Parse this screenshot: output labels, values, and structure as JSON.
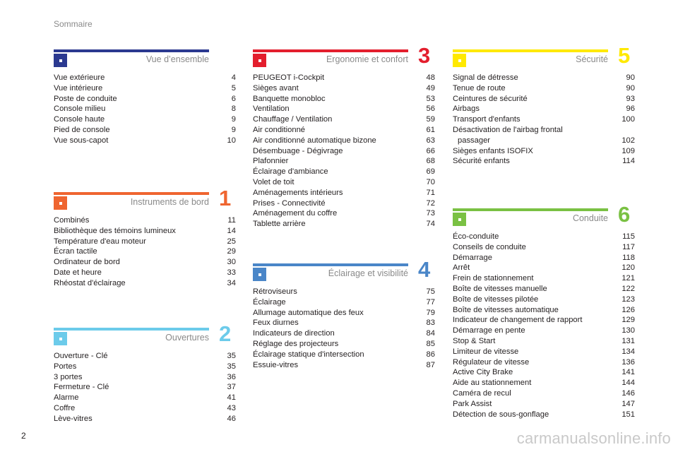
{
  "header": {
    "title": "Sommaire"
  },
  "footer": {
    "page_number": "2",
    "watermark": "carmanualsonline.info"
  },
  "sections": [
    {
      "title": "Vue d’ensemble",
      "number": "",
      "color": "#2b3990",
      "items": [
        {
          "label": "Vue extérieure",
          "page": "4"
        },
        {
          "label": "Vue intérieure",
          "page": "5"
        },
        {
          "label": "Poste de conduite",
          "page": "6"
        },
        {
          "label": "Console milieu",
          "page": "8"
        },
        {
          "label": "Console haute",
          "page": "9"
        },
        {
          "label": "Pied de console",
          "page": "9"
        },
        {
          "label": "Vue sous-capot",
          "page": "10"
        }
      ]
    },
    {
      "title": "Instruments de bord",
      "number": "1",
      "color": "#ef6530",
      "items": [
        {
          "label": "Combinés",
          "page": "11"
        },
        {
          "label": "Bibliothèque des témoins lumineux",
          "page": "14"
        },
        {
          "label": "Température d'eau moteur",
          "page": "25"
        },
        {
          "label": "Écran tactile",
          "page": "29"
        },
        {
          "label": "Ordinateur de bord",
          "page": "30"
        },
        {
          "label": "Date et heure",
          "page": "33"
        },
        {
          "label": "Rhéostat d'éclairage",
          "page": "34"
        }
      ]
    },
    {
      "title": "Ouvertures",
      "number": "2",
      "color": "#6ccbea",
      "items": [
        {
          "label": "Ouverture - Clé",
          "page": "35"
        },
        {
          "label": "Portes",
          "page": "35"
        },
        {
          "label": "3 portes",
          "page": "36"
        },
        {
          "label": "Fermeture - Clé",
          "page": "37"
        },
        {
          "label": "Alarme",
          "page": "41"
        },
        {
          "label": "Coffre",
          "page": "43"
        },
        {
          "label": "Lève-vitres",
          "page": "46"
        }
      ]
    },
    {
      "title": "Ergonomie et confort",
      "number": "3",
      "color": "#e31e2d",
      "items": [
        {
          "label": "PEUGEOT i-Cockpit",
          "page": "48"
        },
        {
          "label": "Sièges avant",
          "page": "49"
        },
        {
          "label": "Banquette monobloc",
          "page": "53"
        },
        {
          "label": "Ventilation",
          "page": "56"
        },
        {
          "label": "Chauffage / Ventilation",
          "page": "59"
        },
        {
          "label": "Air conditionné",
          "page": "61"
        },
        {
          "label": "Air conditionné automatique bizone",
          "page": "63"
        },
        {
          "label": "Désembuage - Dégivrage",
          "page": "66"
        },
        {
          "label": "Plafonnier",
          "page": "68"
        },
        {
          "label": "Éclairage d'ambiance",
          "page": "69"
        },
        {
          "label": "Volet de toit",
          "page": "70"
        },
        {
          "label": "Aménagements intérieurs",
          "page": "71"
        },
        {
          "label": "Prises - Connectivité",
          "page": "72"
        },
        {
          "label": "Aménagement du coffre",
          "page": "73"
        },
        {
          "label": "Tablette arrière",
          "page": "74"
        }
      ]
    },
    {
      "title": "Éclairage et visibilité",
      "number": "4",
      "color": "#4a86c8",
      "items": [
        {
          "label": "Rétroviseurs",
          "page": "75"
        },
        {
          "label": "Éclairage",
          "page": "77"
        },
        {
          "label": "Allumage automatique des feux",
          "page": "79"
        },
        {
          "label": "Feux diurnes",
          "page": "83"
        },
        {
          "label": "Indicateurs de direction",
          "page": "84"
        },
        {
          "label": "Réglage des projecteurs",
          "page": "85"
        },
        {
          "label": "Éclairage statique d'intersection",
          "page": "86"
        },
        {
          "label": "Essuie-vitres",
          "page": "87"
        }
      ]
    },
    {
      "title": "Sécurité",
      "number": "5",
      "color": "#ffe900",
      "items": [
        {
          "label": "Signal de détresse",
          "page": "90"
        },
        {
          "label": "Tenue de route",
          "page": "90"
        },
        {
          "label": "Ceintures de sécurité",
          "page": "93"
        },
        {
          "label": "Airbags",
          "page": "96"
        },
        {
          "label": "Transport d'enfants",
          "page": "100"
        },
        {
          "label": "Désactivation de l'airbag frontal passager",
          "page": "102"
        },
        {
          "label": "Sièges enfants ISOFIX",
          "page": "109"
        },
        {
          "label": "Sécurité enfants",
          "page": "114"
        }
      ]
    },
    {
      "title": "Conduite",
      "number": "6",
      "color": "#7ac143",
      "items": [
        {
          "label": "Éco-conduite",
          "page": "115"
        },
        {
          "label": "Conseils de conduite",
          "page": "117"
        },
        {
          "label": "Démarrage",
          "page": "118"
        },
        {
          "label": "Arrêt",
          "page": "120"
        },
        {
          "label": "Frein de stationnement",
          "page": "121"
        },
        {
          "label": "Boîte de vitesses manuelle",
          "page": "122"
        },
        {
          "label": "Boîte de vitesses pilotée",
          "page": "123"
        },
        {
          "label": "Boîte de vitesses automatique",
          "page": "126"
        },
        {
          "label": "Indicateur de changement de rapport",
          "page": "129"
        },
        {
          "label": "Démarrage en pente",
          "page": "130"
        },
        {
          "label": "Stop & Start",
          "page": "131"
        },
        {
          "label": "Limiteur de vitesse",
          "page": "134"
        },
        {
          "label": "Régulateur de vitesse",
          "page": "136"
        },
        {
          "label": "Active City Brake",
          "page": "141"
        },
        {
          "label": "Aide au stationnement",
          "page": "144"
        },
        {
          "label": "Caméra de recul",
          "page": "146"
        },
        {
          "label": "Park Assist",
          "page": "147"
        },
        {
          "label": "Détection de sous-gonflage",
          "page": "151"
        }
      ]
    }
  ]
}
